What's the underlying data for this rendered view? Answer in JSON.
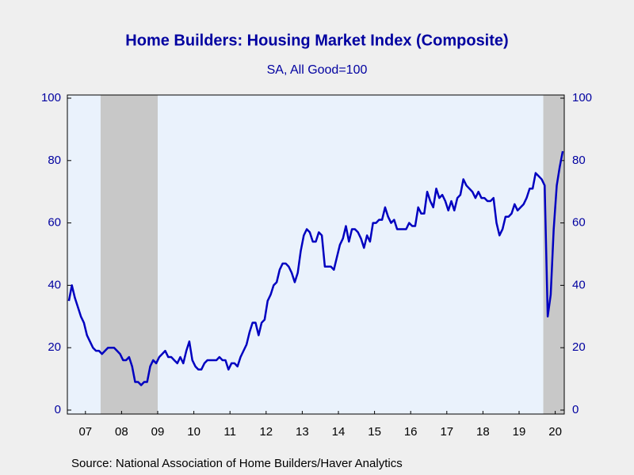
{
  "chart_data": {
    "type": "line",
    "title": "Home Builders: Housing Market Index (Composite)",
    "subtitle": "SA, All Good=100",
    "source": "Source:  National Association of Home Builders/Haver Analytics",
    "x": [
      2007.042,
      2007.125,
      2007.208,
      2007.292,
      2007.375,
      2007.458,
      2007.542,
      2007.625,
      2007.708,
      2007.792,
      2007.875,
      2007.958,
      2008.042,
      2008.125,
      2008.208,
      2008.292,
      2008.375,
      2008.458,
      2008.542,
      2008.625,
      2008.708,
      2008.792,
      2008.875,
      2008.958,
      2009.042,
      2009.125,
      2009.208,
      2009.292,
      2009.375,
      2009.458,
      2009.542,
      2009.625,
      2009.708,
      2009.792,
      2009.875,
      2009.958,
      2010.042,
      2010.125,
      2010.208,
      2010.292,
      2010.375,
      2010.458,
      2010.542,
      2010.625,
      2010.708,
      2010.792,
      2010.875,
      2010.958,
      2011.042,
      2011.125,
      2011.208,
      2011.292,
      2011.375,
      2011.458,
      2011.542,
      2011.625,
      2011.708,
      2011.792,
      2011.875,
      2011.958,
      2012.042,
      2012.125,
      2012.208,
      2012.292,
      2012.375,
      2012.458,
      2012.542,
      2012.625,
      2012.708,
      2012.792,
      2012.875,
      2012.958,
      2013.042,
      2013.125,
      2013.208,
      2013.292,
      2013.375,
      2013.458,
      2013.542,
      2013.625,
      2013.708,
      2013.792,
      2013.875,
      2013.958,
      2014.042,
      2014.125,
      2014.208,
      2014.292,
      2014.375,
      2014.458,
      2014.542,
      2014.625,
      2014.708,
      2014.792,
      2014.875,
      2014.958,
      2015.042,
      2015.125,
      2015.208,
      2015.292,
      2015.375,
      2015.458,
      2015.542,
      2015.625,
      2015.708,
      2015.792,
      2015.875,
      2015.958,
      2016.042,
      2016.125,
      2016.208,
      2016.292,
      2016.375,
      2016.458,
      2016.542,
      2016.625,
      2016.708,
      2016.792,
      2016.875,
      2016.958,
      2017.042,
      2017.125,
      2017.208,
      2017.292,
      2017.375,
      2017.458,
      2017.542,
      2017.625,
      2017.708,
      2017.792,
      2017.875,
      2017.958,
      2018.042,
      2018.125,
      2018.208,
      2018.292,
      2018.375,
      2018.458,
      2018.542,
      2018.625,
      2018.708,
      2018.792,
      2018.875,
      2018.958,
      2019.042,
      2019.125,
      2019.208,
      2019.292,
      2019.375,
      2019.458,
      2019.542,
      2019.625,
      2019.708,
      2019.792,
      2019.875,
      2019.958,
      2020.042,
      2020.125,
      2020.208,
      2020.292,
      2020.375,
      2020.458,
      2020.542,
      2020.625,
      2020.708
    ],
    "series": [
      {
        "name": "Housing Market Index",
        "color": "#0000c0",
        "values": [
          35,
          40,
          36,
          33,
          30,
          28,
          24,
          22,
          20,
          19,
          19,
          18,
          19,
          20,
          20,
          20,
          19,
          18,
          16,
          16,
          17,
          14,
          9,
          9,
          8,
          9,
          9,
          14,
          16,
          15,
          17,
          18,
          19,
          17,
          17,
          16,
          15,
          17,
          15,
          19,
          22,
          16,
          14,
          13,
          13,
          15,
          16,
          16,
          16,
          16,
          17,
          16,
          16,
          13,
          15,
          15,
          14,
          17,
          19,
          21,
          25,
          28,
          28,
          24,
          28,
          29,
          35,
          37,
          40,
          41,
          45,
          47,
          47,
          46,
          44,
          41,
          44,
          51,
          56,
          58,
          57,
          54,
          54,
          57,
          56,
          46,
          46,
          46,
          45,
          49,
          53,
          55,
          59,
          54,
          58,
          58,
          57,
          55,
          52,
          56,
          54,
          60,
          60,
          61,
          61,
          65,
          62,
          60,
          61,
          58,
          58,
          58,
          58,
          60,
          59,
          59,
          65,
          63,
          63,
          70,
          67,
          65,
          71,
          68,
          69,
          67,
          64,
          67,
          64,
          68,
          69,
          74,
          72,
          71,
          70,
          68,
          70,
          68,
          68,
          67,
          67,
          68,
          60,
          56,
          58,
          62,
          62,
          63,
          66,
          64,
          65,
          66,
          68,
          71,
          71,
          76,
          75,
          74,
          72,
          30,
          37,
          58,
          72,
          78,
          83
        ]
      }
    ],
    "shaded_periods": [
      [
        2007.92,
        2009.5
      ],
      [
        2020.17,
        2020.75
      ]
    ],
    "xlim": [
      2007,
      2020.75
    ],
    "xticks": [
      {
        "value": 2007.5,
        "label": "07"
      },
      {
        "value": 2008.5,
        "label": "08"
      },
      {
        "value": 2009.5,
        "label": "09"
      },
      {
        "value": 2010.5,
        "label": "10"
      },
      {
        "value": 2011.5,
        "label": "11"
      },
      {
        "value": 2012.5,
        "label": "12"
      },
      {
        "value": 2013.5,
        "label": "13"
      },
      {
        "value": 2014.5,
        "label": "14"
      },
      {
        "value": 2015.5,
        "label": "15"
      },
      {
        "value": 2016.5,
        "label": "16"
      },
      {
        "value": 2017.5,
        "label": "17"
      },
      {
        "value": 2018.5,
        "label": "18"
      },
      {
        "value": 2019.5,
        "label": "19"
      },
      {
        "value": 2020.5,
        "label": "20"
      }
    ],
    "ylim": [
      0,
      100
    ],
    "yticks": [
      0,
      20,
      40,
      60,
      80,
      100
    ],
    "y2lim": [
      0,
      100
    ],
    "y2ticks": [
      0,
      20,
      40,
      60,
      80,
      100
    ]
  }
}
